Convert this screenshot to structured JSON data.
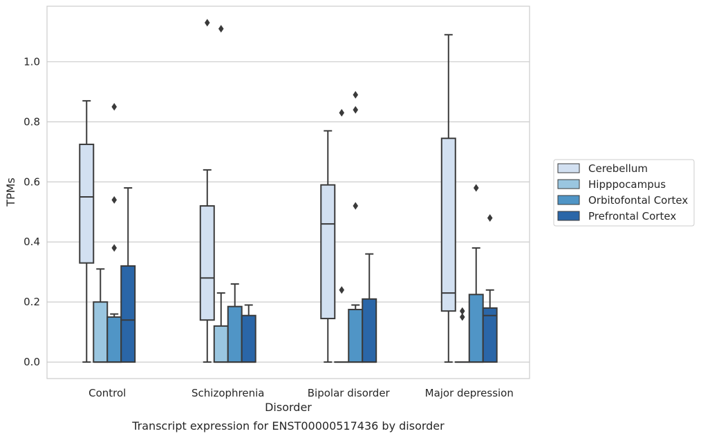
{
  "chart_data": {
    "type": "box",
    "caption": "Transcript expression for ENST00000517436 by disorder",
    "xlabel": "Disorder",
    "ylabel": "TPMs",
    "ylim": [
      -0.055,
      1.185
    ],
    "yticks": [
      0.0,
      0.2,
      0.4,
      0.6,
      0.8,
      1.0
    ],
    "ytick_labels": [
      "0.0",
      "0.2",
      "0.4",
      "0.6",
      "0.8",
      "1.0"
    ],
    "grid": "horizontal",
    "legend_position": "right",
    "categories": [
      "Control",
      "Schizophrenia",
      "Bipolar disorder",
      "Major depression"
    ],
    "series": [
      {
        "name": "Cerebellum",
        "color": "#d2e0f1",
        "boxes": [
          {
            "q1": 0.33,
            "median": 0.55,
            "q3": 0.725,
            "whislo": 0.0,
            "whishi": 0.87,
            "fliers": []
          },
          {
            "q1": 0.14,
            "median": 0.28,
            "q3": 0.52,
            "whislo": 0.0,
            "whishi": 0.64,
            "fliers": [
              1.13
            ]
          },
          {
            "q1": 0.145,
            "median": 0.46,
            "q3": 0.59,
            "whislo": 0.0,
            "whishi": 0.77,
            "fliers": []
          },
          {
            "q1": 0.17,
            "median": 0.23,
            "q3": 0.745,
            "whislo": 0.0,
            "whishi": 1.09,
            "fliers": []
          }
        ]
      },
      {
        "name": "Hipppocampus",
        "color": "#9ac6e0",
        "boxes": [
          {
            "q1": 0.0,
            "median": 0.0,
            "q3": 0.2,
            "whislo": 0.0,
            "whishi": 0.31,
            "fliers": []
          },
          {
            "q1": 0.0,
            "median": 0.0,
            "q3": 0.12,
            "whislo": 0.0,
            "whishi": 0.23,
            "fliers": [
              1.11
            ]
          },
          {
            "q1": 0.0,
            "median": 0.0,
            "q3": 0.0,
            "whislo": 0.0,
            "whishi": 0.0,
            "fliers": [
              0.83,
              0.24
            ]
          },
          {
            "q1": 0.0,
            "median": 0.0,
            "q3": 0.0,
            "whislo": 0.0,
            "whishi": 0.0,
            "fliers": [
              0.17,
              0.15
            ]
          }
        ]
      },
      {
        "name": "Orbitofontal Cortex",
        "color": "#5095c6",
        "boxes": [
          {
            "q1": 0.0,
            "median": 0.0,
            "q3": 0.15,
            "whislo": 0.0,
            "whishi": 0.16,
            "fliers": [
              0.85,
              0.54,
              0.38
            ]
          },
          {
            "q1": 0.0,
            "median": 0.0,
            "q3": 0.185,
            "whislo": 0.0,
            "whishi": 0.26,
            "fliers": []
          },
          {
            "q1": 0.0,
            "median": 0.0,
            "q3": 0.175,
            "whislo": 0.0,
            "whishi": 0.19,
            "fliers": [
              0.89,
              0.84,
              0.52
            ]
          },
          {
            "q1": 0.0,
            "median": 0.0,
            "q3": 0.225,
            "whislo": 0.0,
            "whishi": 0.38,
            "fliers": [
              0.58
            ]
          }
        ]
      },
      {
        "name": "Prefrontal Cortex",
        "color": "#2a66a8",
        "boxes": [
          {
            "q1": 0.0,
            "median": 0.14,
            "q3": 0.32,
            "whislo": 0.0,
            "whishi": 0.58,
            "fliers": []
          },
          {
            "q1": 0.0,
            "median": 0.0,
            "q3": 0.155,
            "whislo": 0.0,
            "whishi": 0.19,
            "fliers": []
          },
          {
            "q1": 0.0,
            "median": 0.0,
            "q3": 0.21,
            "whislo": 0.0,
            "whishi": 0.36,
            "fliers": []
          },
          {
            "q1": 0.0,
            "median": 0.155,
            "q3": 0.18,
            "whislo": 0.0,
            "whishi": 0.24,
            "fliers": [
              0.48
            ]
          }
        ]
      }
    ]
  }
}
